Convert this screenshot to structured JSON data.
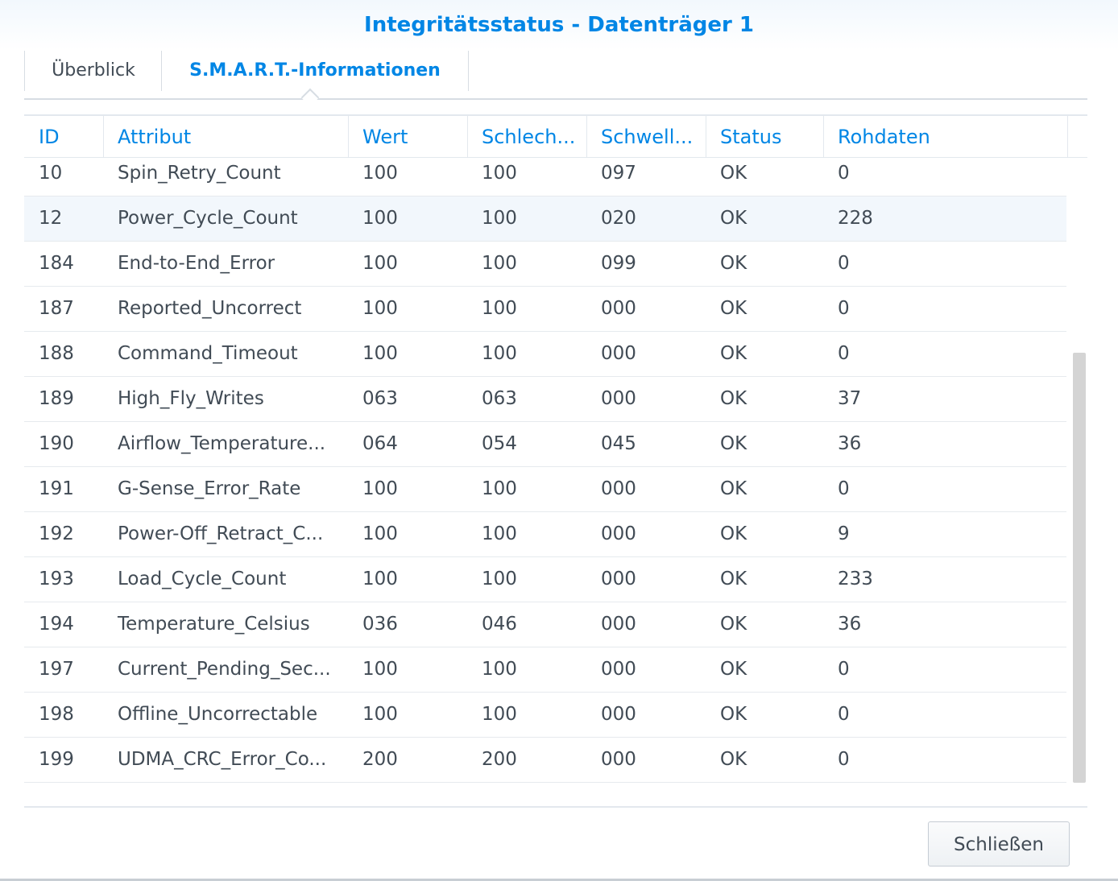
{
  "window": {
    "title": "Integritätsstatus - Datenträger 1"
  },
  "tabs": [
    {
      "label": "Überblick"
    },
    {
      "label": "S.M.A.R.T.-Informationen"
    }
  ],
  "columns": [
    "ID",
    "Attribut",
    "Wert",
    "Schlech...",
    "Schwell...",
    "Status",
    "Rohdaten"
  ],
  "rows": [
    {
      "id": "10",
      "attribute": "Spin_Retry_Count",
      "value": "100",
      "worst": "100",
      "threshold": "097",
      "status": "OK",
      "raw": "0"
    },
    {
      "id": "12",
      "attribute": "Power_Cycle_Count",
      "value": "100",
      "worst": "100",
      "threshold": "020",
      "status": "OK",
      "raw": "228"
    },
    {
      "id": "184",
      "attribute": "End-to-End_Error",
      "value": "100",
      "worst": "100",
      "threshold": "099",
      "status": "OK",
      "raw": "0"
    },
    {
      "id": "187",
      "attribute": "Reported_Uncorrect",
      "value": "100",
      "worst": "100",
      "threshold": "000",
      "status": "OK",
      "raw": "0"
    },
    {
      "id": "188",
      "attribute": "Command_Timeout",
      "value": "100",
      "worst": "100",
      "threshold": "000",
      "status": "OK",
      "raw": "0"
    },
    {
      "id": "189",
      "attribute": "High_Fly_Writes",
      "value": "063",
      "worst": "063",
      "threshold": "000",
      "status": "OK",
      "raw": "37"
    },
    {
      "id": "190",
      "attribute": "Airflow_Temperature...",
      "value": "064",
      "worst": "054",
      "threshold": "045",
      "status": "OK",
      "raw": "36"
    },
    {
      "id": "191",
      "attribute": "G-Sense_Error_Rate",
      "value": "100",
      "worst": "100",
      "threshold": "000",
      "status": "OK",
      "raw": "0"
    },
    {
      "id": "192",
      "attribute": "Power-Off_Retract_C...",
      "value": "100",
      "worst": "100",
      "threshold": "000",
      "status": "OK",
      "raw": "9"
    },
    {
      "id": "193",
      "attribute": "Load_Cycle_Count",
      "value": "100",
      "worst": "100",
      "threshold": "000",
      "status": "OK",
      "raw": "233"
    },
    {
      "id": "194",
      "attribute": "Temperature_Celsius",
      "value": "036",
      "worst": "046",
      "threshold": "000",
      "status": "OK",
      "raw": "36"
    },
    {
      "id": "197",
      "attribute": "Current_Pending_Sec...",
      "value": "100",
      "worst": "100",
      "threshold": "000",
      "status": "OK",
      "raw": "0"
    },
    {
      "id": "198",
      "attribute": "Offline_Uncorrectable",
      "value": "100",
      "worst": "100",
      "threshold": "000",
      "status": "OK",
      "raw": "0"
    },
    {
      "id": "199",
      "attribute": "UDMA_CRC_Error_Co...",
      "value": "200",
      "worst": "200",
      "threshold": "000",
      "status": "OK",
      "raw": "0"
    }
  ],
  "highlighted_row": "12",
  "footer": {
    "close_label": "Schließen"
  },
  "colors": {
    "accent": "#0086e5",
    "text": "#414b55",
    "row_highlight": "#f2f7fc"
  }
}
